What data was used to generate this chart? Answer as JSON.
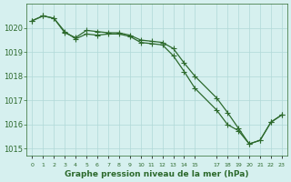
{
  "line1_x": [
    0,
    1,
    2,
    3,
    4,
    5,
    6,
    7,
    8,
    9,
    10,
    11,
    12,
    13,
    14,
    15,
    17,
    18,
    19,
    20,
    21,
    22,
    23
  ],
  "line1_y": [
    1020.3,
    1020.5,
    1020.4,
    1019.8,
    1019.6,
    1019.9,
    1019.85,
    1019.8,
    1019.8,
    1019.7,
    1019.5,
    1019.45,
    1019.4,
    1019.15,
    1018.55,
    1018.0,
    1017.1,
    1016.5,
    1015.85,
    1015.2,
    1015.35,
    1016.1,
    1016.4
  ],
  "line2_x": [
    0,
    1,
    2,
    3,
    4,
    5,
    6,
    7,
    8,
    9,
    10,
    11,
    12,
    13,
    14,
    15,
    17,
    18,
    19,
    20,
    21,
    22,
    23
  ],
  "line2_y": [
    1020.3,
    1020.5,
    1020.4,
    1019.85,
    1019.55,
    1019.75,
    1019.7,
    1019.75,
    1019.75,
    1019.65,
    1019.4,
    1019.35,
    1019.3,
    1018.85,
    1018.2,
    1017.5,
    1016.6,
    1016.0,
    1015.75,
    1015.2,
    1015.35,
    1016.1,
    1016.4
  ],
  "ylim": [
    1014.7,
    1021.0
  ],
  "xlim": [
    -0.5,
    23.5
  ],
  "yticks": [
    1015,
    1016,
    1017,
    1018,
    1019,
    1020
  ],
  "xticks": [
    0,
    1,
    2,
    3,
    4,
    5,
    6,
    7,
    8,
    9,
    10,
    11,
    12,
    13,
    14,
    15,
    17,
    18,
    19,
    20,
    21,
    22,
    23
  ],
  "xlabel": "Graphe pression niveau de la mer (hPa)",
  "line_color": "#2d6a2d",
  "marker": "+",
  "bg_color": "#d6f0ef",
  "grid_color": "#b0d8d8",
  "title_color": "#2d6a2d",
  "axis_label_color": "#2d6a2d",
  "tick_color": "#2d6a2d"
}
